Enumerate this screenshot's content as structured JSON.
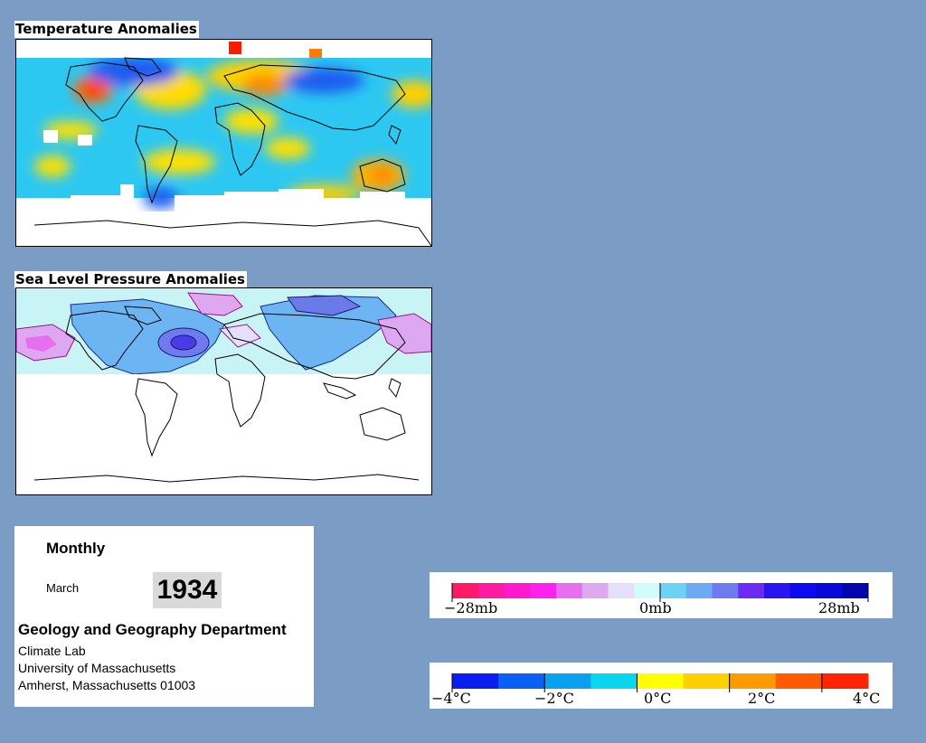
{
  "panels": {
    "temperature": {
      "title": "Temperature Anomalies"
    },
    "pressure": {
      "title": "Sea Level Pressure Anomalies"
    }
  },
  "info": {
    "period": "Monthly",
    "month": "March",
    "year": "1934",
    "department": "Geology and Geography Department",
    "lines": [
      "Climate Lab",
      "University of Massachusetts",
      "Amherst, Massachusetts 01003"
    ]
  },
  "legends": {
    "pressure": {
      "labels": [
        "−28mb",
        "0mb",
        "28mb"
      ],
      "colors": [
        "#ff1a66",
        "#ff1aa0",
        "#ff1ad0",
        "#ff22ee",
        "#e86ef0",
        "#dda8f0",
        "#e4e0fa",
        "#d2fbfc",
        "#6cd2f6",
        "#6aaaf2",
        "#6e7aee",
        "#6a2cf2",
        "#2a14f0",
        "#0e0af0",
        "#0808d8",
        "#0505b0"
      ]
    },
    "temperature": {
      "labels": [
        "−4°C",
        "−2°C",
        "0°C",
        "2°C",
        "4°C"
      ],
      "colors": [
        "#0a1ef0",
        "#0a60f0",
        "#0aa0f0",
        "#0ad6f0",
        "#ffff00",
        "#ffd000",
        "#ff9a00",
        "#ff5a00",
        "#ff2400"
      ]
    }
  }
}
